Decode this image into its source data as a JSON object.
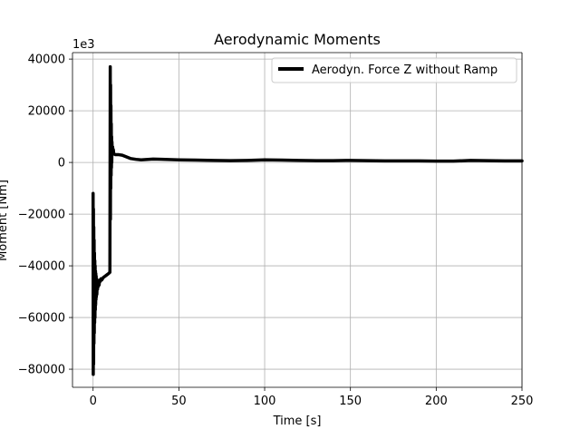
{
  "chart_data": {
    "type": "line",
    "title": "Aerodynamic Moments",
    "xlabel": "Time [s]",
    "ylabel": "Moment [Nm]",
    "offset_text": "1e3",
    "xlim": [
      -12,
      250
    ],
    "ylim": [
      -87000,
      42500
    ],
    "xticks": [
      0,
      50,
      100,
      150,
      200,
      250
    ],
    "yticks": [
      -80000,
      -60000,
      -40000,
      -20000,
      0,
      20000,
      40000
    ],
    "grid": true,
    "legend_position": "top-right",
    "series": [
      {
        "name": "Aerodyn. Force Z without Ramp",
        "color": "#000000",
        "x": [
          0,
          0.1,
          0.2,
          0.3,
          0.4,
          0.5,
          0.6,
          0.7,
          0.8,
          0.9,
          1.0,
          1.1,
          1.2,
          1.3,
          1.4,
          1.5,
          1.6,
          1.7,
          1.8,
          1.9,
          2.0,
          2.2,
          2.4,
          2.6,
          2.8,
          3.0,
          3.2,
          3.5,
          3.8,
          4.2,
          4.6,
          5.0,
          6.0,
          7.0,
          8.0,
          9.0,
          9.8,
          10.0,
          10.1,
          10.2,
          10.3,
          10.4,
          10.5,
          10.6,
          10.7,
          10.8,
          10.9,
          11.0,
          11.2,
          11.4,
          11.6,
          11.8,
          12.0,
          12.5,
          13.0,
          14.0,
          15.0,
          17.0,
          20.0,
          22.0,
          25.0,
          28.0,
          30.0,
          35.0,
          40.0,
          50.0,
          60.0,
          70.0,
          80.0,
          90.0,
          100.0,
          110.0,
          120.0,
          130.0,
          140.0,
          150.0,
          160.0,
          170.0,
          180.0,
          190.0,
          200.0,
          210.0,
          220.0,
          230.0,
          240.0,
          250.0
        ],
        "y": [
          -12000,
          -82000,
          -18000,
          -78000,
          -25000,
          -70000,
          -30000,
          -66000,
          -35000,
          -62000,
          -38000,
          -60000,
          -40000,
          -57000,
          -42000,
          -55000,
          -43000,
          -53000,
          -44000,
          -52000,
          -45000,
          -51000,
          -46000,
          -49000,
          -46500,
          -48000,
          -46000,
          -47500,
          -45500,
          -46000,
          -45000,
          -45500,
          -44500,
          -44000,
          -43500,
          -43000,
          -42500,
          37000,
          -22000,
          30000,
          -10000,
          22000,
          -5000,
          15000,
          -2000,
          10000,
          0,
          8000,
          3000,
          6000,
          4000,
          5000,
          3500,
          3200,
          3000,
          3000,
          3000,
          2800,
          2000,
          1500,
          1200,
          1000,
          1100,
          1300,
          1200,
          1000,
          900,
          800,
          700,
          800,
          1000,
          900,
          800,
          700,
          700,
          800,
          700,
          600,
          600,
          600,
          500,
          500,
          800,
          700,
          600,
          600
        ]
      }
    ]
  }
}
